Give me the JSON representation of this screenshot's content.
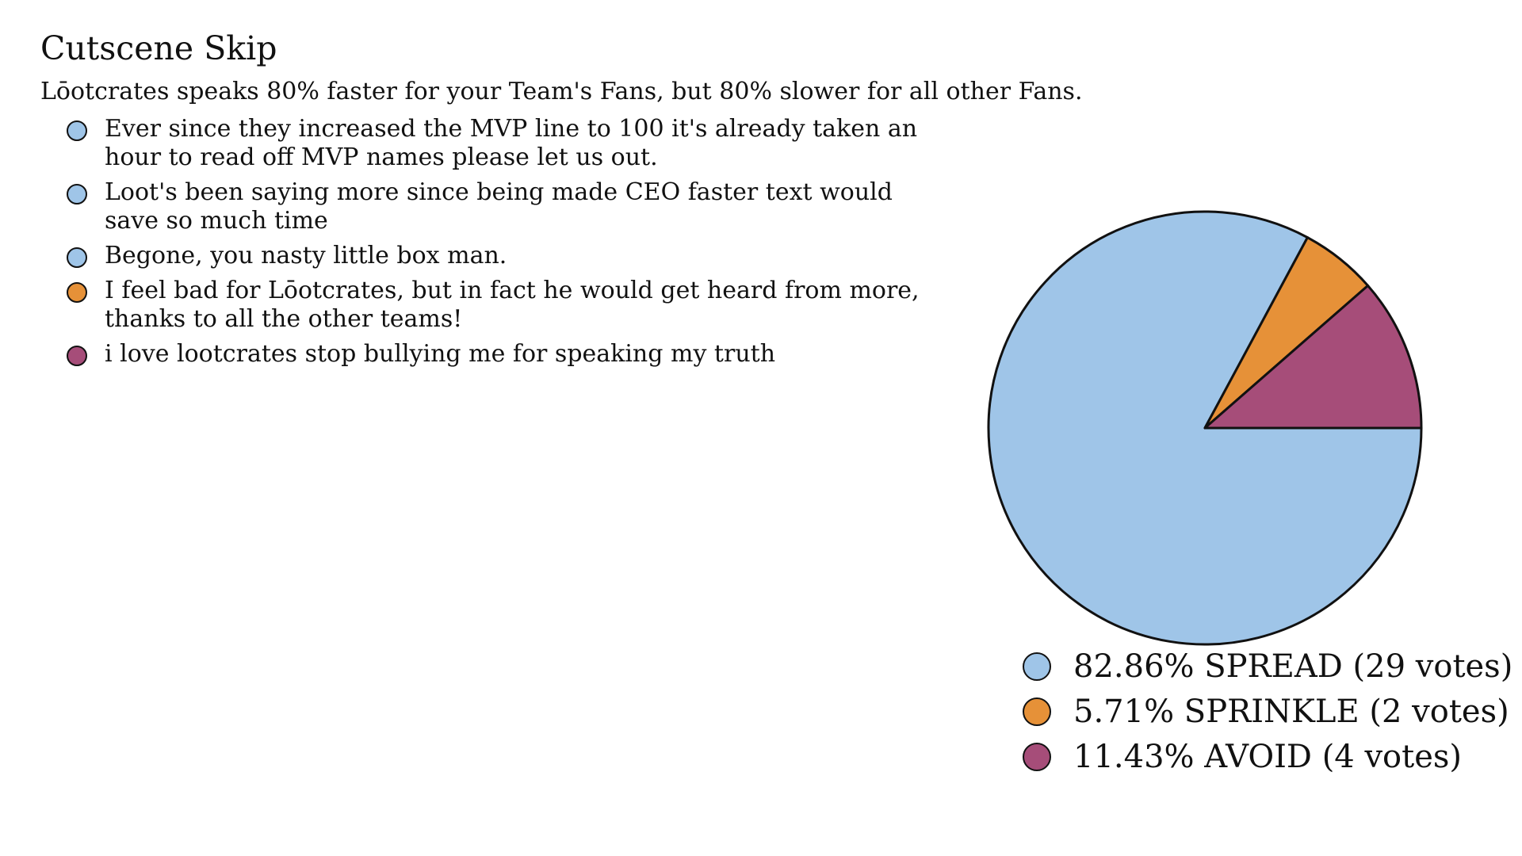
{
  "title": "Cutscene Skip",
  "subtitle": "Lōotcrates speaks 80% faster for your Team's Fans, but 80% slower for all other Fans.",
  "colors": {
    "spread": "#9fc5e8",
    "sprinkle": "#e69138",
    "avoid": "#a64d79",
    "outline": "#111111"
  },
  "comments": [
    {
      "text": "Ever since they increased the MVP line to 100 it's already taken an hour to read off MVP names please let us out.",
      "color": "#9fc5e8"
    },
    {
      "text": "Loot's been saying more since being made CEO faster text would save so much time",
      "color": "#9fc5e8"
    },
    {
      "text": "Begone, you nasty little box man.",
      "color": "#9fc5e8"
    },
    {
      "text": "I feel bad for Lōotcrates, but in fact he would get heard from more, thanks to all the other teams!",
      "color": "#e69138"
    },
    {
      "text": "i love lootcrates stop bullying me for speaking my truth",
      "color": "#a64d79"
    }
  ],
  "chart_data": {
    "type": "pie",
    "start_angle": "3 o'clock",
    "direction": "clockwise",
    "slices": [
      {
        "name": "SPREAD",
        "percent": 82.86,
        "votes": 29,
        "color": "#9fc5e8",
        "label": "82.86% SPREAD (29 votes)"
      },
      {
        "name": "SPRINKLE",
        "percent": 5.71,
        "votes": 2,
        "color": "#e69138",
        "label": "5.71% SPRINKLE (2 votes)"
      },
      {
        "name": "AVOID",
        "percent": 11.43,
        "votes": 4,
        "color": "#a64d79",
        "label": "11.43% AVOID (4 votes)"
      }
    ],
    "legend_placement": "below"
  }
}
